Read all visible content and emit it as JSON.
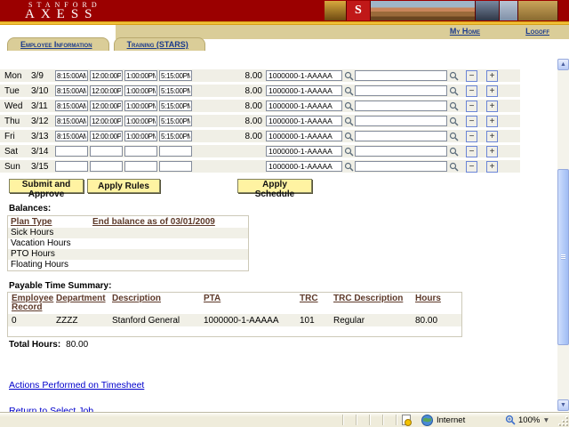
{
  "banner": {
    "brand_top": "STANFORD",
    "brand_bottom": "AXESS",
    "photo_tile_logo": "S"
  },
  "header": {
    "links": [
      {
        "label": "My Home"
      },
      {
        "label": "Logoff"
      }
    ]
  },
  "tabs": [
    {
      "label": "Employee Information"
    },
    {
      "label": "Training (STARS)"
    }
  ],
  "timesheet": {
    "rows": [
      {
        "day": "Mon",
        "date": "3/9",
        "times": [
          "8:15:00AM",
          "12:00:00PM",
          "1:00:00PM",
          "5:15:00PM"
        ],
        "hours": "8.00",
        "pta": "1000000-1-AAAAA",
        "trc": ""
      },
      {
        "day": "Tue",
        "date": "3/10",
        "times": [
          "8:15:00AM",
          "12:00:00PM",
          "1:00:00PM",
          "5:15:00PM"
        ],
        "hours": "8.00",
        "pta": "1000000-1-AAAAA",
        "trc": ""
      },
      {
        "day": "Wed",
        "date": "3/11",
        "times": [
          "8:15:00AM",
          "12:00:00PM",
          "1:00:00PM",
          "5:15:00PM"
        ],
        "hours": "8.00",
        "pta": "1000000-1-AAAAA",
        "trc": ""
      },
      {
        "day": "Thu",
        "date": "3/12",
        "times": [
          "8:15:00AM",
          "12:00:00PM",
          "1:00:00PM",
          "5:15:00PM"
        ],
        "hours": "8.00",
        "pta": "1000000-1-AAAAA",
        "trc": ""
      },
      {
        "day": "Fri",
        "date": "3/13",
        "times": [
          "8:15:00AM",
          "12:00:00PM",
          "1:00:00PM",
          "5:15:00PM"
        ],
        "hours": "8.00",
        "pta": "1000000-1-AAAAA",
        "trc": ""
      },
      {
        "day": "Sat",
        "date": "3/14",
        "times": [
          "",
          "",
          "",
          ""
        ],
        "hours": "",
        "pta": "1000000-1-AAAAA",
        "trc": ""
      },
      {
        "day": "Sun",
        "date": "3/15",
        "times": [
          "",
          "",
          "",
          ""
        ],
        "hours": "",
        "pta": "1000000-1-AAAAA",
        "trc": ""
      }
    ]
  },
  "actions": {
    "submit": "Submit and Approve",
    "apply_rules": "Apply Rules",
    "apply_schedule": "Apply Schedule"
  },
  "balances": {
    "title": "Balances:",
    "col_plan": "Plan Type",
    "col_balance": "End balance as of 03/01/2009",
    "plans": [
      "Sick Hours",
      "Vacation Hours",
      "PTO Hours",
      "Floating Hours"
    ]
  },
  "payable": {
    "title": "Payable Time Summary:",
    "headers": [
      "Employee Record",
      "Department",
      "Description",
      "PTA",
      "TRC",
      "TRC Description",
      "Hours"
    ],
    "rows": [
      [
        "0",
        "ZZZZ",
        "Stanford General",
        "1000000-1-AAAAA",
        "101",
        "Regular",
        "80.00"
      ]
    ],
    "total_label": "Total Hours:",
    "total_value": "80.00"
  },
  "links": {
    "actions_performed": "Actions Performed on Timesheet",
    "return_to_job": "Return to Select Job"
  },
  "statusbar": {
    "zone": "Internet",
    "zoom": "100%"
  },
  "icons": {
    "lookup": "magnifier-icon",
    "delete_row": "minus-icon",
    "add_row": "plus-icon",
    "zone": "globe-icon",
    "zoom": "zoom-magnifier-icon"
  },
  "colors": {
    "cardinal": "#9B0000",
    "gold": "#FFD24A",
    "tan": "#DACD98",
    "tab_link_blue": "#1A3A8C",
    "link_blue": "#0000CC",
    "button_yellow": "#FFF3A2",
    "header_maroon": "#5E3A2A",
    "row_stripe": "#F0EFE6",
    "scrollbar_blue": "#9FBCF4"
  }
}
